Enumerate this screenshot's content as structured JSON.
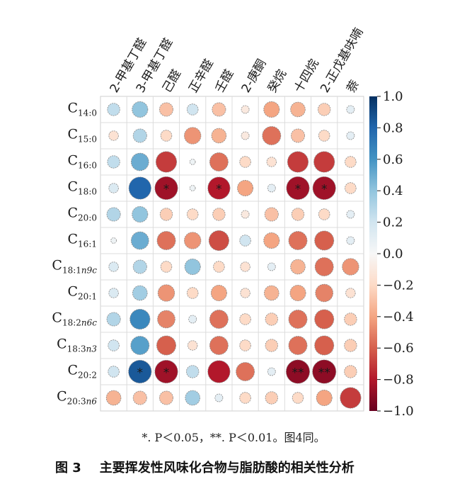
{
  "chart_data": {
    "type": "heatmap",
    "style": "circle-correlation-matrix",
    "columns": [
      "2-甲基丁醛",
      "3-甲基丁醛",
      "己醛",
      "正辛醛",
      "壬醛",
      "2-庚酮",
      "癸烷",
      "十四烷",
      "2-正戊基呋喃",
      "萘"
    ],
    "rows": [
      {
        "base": "C",
        "sub": "14:0"
      },
      {
        "base": "C",
        "sub": "15:0"
      },
      {
        "base": "C",
        "sub": "16:0"
      },
      {
        "base": "C",
        "sub": "18:0"
      },
      {
        "base": "C",
        "sub": "20:0"
      },
      {
        "base": "C",
        "sub": "16:1"
      },
      {
        "base": "C",
        "sub": "18:1n9c"
      },
      {
        "base": "C",
        "sub": "20:1"
      },
      {
        "base": "C",
        "sub": "18:2n6c"
      },
      {
        "base": "C",
        "sub": "18:3n3"
      },
      {
        "base": "C",
        "sub": "20:2"
      },
      {
        "base": "C",
        "sub": "20:3n6"
      }
    ],
    "values": [
      [
        0.25,
        0.4,
        -0.3,
        0.2,
        -0.3,
        -0.1,
        -0.4,
        -0.35,
        -0.25,
        0.1
      ],
      [
        -0.15,
        0.3,
        -0.2,
        -0.45,
        -0.35,
        -0.1,
        -0.55,
        -0.3,
        -0.2,
        0.1
      ],
      [
        0.25,
        0.5,
        -0.7,
        0.05,
        -0.55,
        -0.2,
        -0.15,
        -0.7,
        -0.7,
        -0.2
      ],
      [
        0.15,
        0.8,
        -0.85,
        0.05,
        -0.8,
        -0.4,
        0.1,
        -0.85,
        -0.85,
        -0.2
      ],
      [
        0.3,
        0.4,
        -0.25,
        -0.2,
        -0.25,
        -0.1,
        -0.3,
        -0.25,
        -0.2,
        0.1
      ],
      [
        0.05,
        0.5,
        -0.55,
        -0.45,
        -0.65,
        0.2,
        -0.4,
        -0.55,
        -0.6,
        0.1
      ],
      [
        0.15,
        0.3,
        -0.2,
        0.4,
        -0.2,
        -0.15,
        0.1,
        -0.35,
        -0.55,
        -0.45
      ],
      [
        0.15,
        0.35,
        -0.45,
        -0.2,
        -0.4,
        -0.15,
        -0.35,
        -0.4,
        -0.5,
        -0.15
      ],
      [
        0.3,
        0.65,
        -0.5,
        0.1,
        -0.55,
        -0.2,
        -0.25,
        -0.55,
        -0.6,
        -0.25
      ],
      [
        0.2,
        0.55,
        -0.6,
        -0.15,
        -0.55,
        -0.2,
        -0.25,
        -0.55,
        -0.6,
        -0.25
      ],
      [
        0.2,
        0.85,
        -0.85,
        0.25,
        -0.8,
        -0.55,
        0.1,
        -0.9,
        -0.9,
        -0.25
      ],
      [
        -0.35,
        -0.3,
        -0.3,
        0.35,
        0.1,
        -0.2,
        -0.25,
        -0.2,
        -0.4,
        -0.7
      ]
    ],
    "significance": [
      [
        "",
        "",
        "",
        "",
        "",
        "",
        "",
        "",
        "",
        ""
      ],
      [
        "",
        "",
        "",
        "",
        "",
        "",
        "",
        "",
        "",
        ""
      ],
      [
        "",
        "",
        "",
        "",
        "",
        "",
        "",
        "",
        "",
        ""
      ],
      [
        "",
        "",
        "*",
        "",
        "*",
        "",
        "",
        "*",
        "*",
        ""
      ],
      [
        "",
        "",
        "",
        "",
        "",
        "",
        "",
        "",
        "",
        ""
      ],
      [
        "",
        "",
        "",
        "",
        "",
        "",
        "",
        "",
        "",
        ""
      ],
      [
        "",
        "",
        "",
        "",
        "",
        "",
        "",
        "",
        "",
        ""
      ],
      [
        "",
        "",
        "",
        "",
        "",
        "",
        "",
        "",
        "",
        ""
      ],
      [
        "",
        "",
        "",
        "",
        "",
        "",
        "",
        "",
        "",
        ""
      ],
      [
        "",
        "",
        "",
        "",
        "",
        "",
        "",
        "",
        "",
        ""
      ],
      [
        "",
        "*",
        "*",
        "",
        "",
        "",
        "",
        "**",
        "**",
        ""
      ],
      [
        "",
        "",
        "",
        "",
        "",
        "",
        "",
        "",
        "",
        ""
      ]
    ],
    "colorbar": {
      "range": [
        -1.0,
        1.0
      ],
      "ticks": [
        "1.0",
        "0.8",
        "0.6",
        "0.4",
        "0.2",
        "0.0",
        "-0.2",
        "-0.4",
        "-0.6",
        "-0.8",
        "-1.0"
      ],
      "colors": {
        "neg_extreme": "#67001f",
        "neg_mid": "#d6604d",
        "neg_light": "#fddbc7",
        "zero": "#f7f7f7",
        "pos_light": "#d1e5f0",
        "pos_mid": "#4393c3",
        "pos_extreme": "#053061"
      }
    }
  },
  "footnote": "*. P＜0.05，**. P＜0.01。图4同。",
  "caption": {
    "number": "图 3",
    "text": "主要挥发性风味化合物与脂肪酸的相关性分析"
  }
}
